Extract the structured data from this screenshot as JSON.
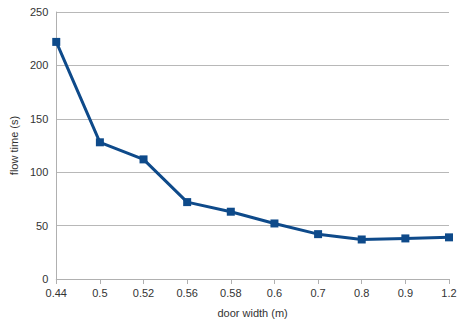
{
  "chart_data": {
    "type": "line",
    "x_label": "door width (m)",
    "y_label": "flow time (s)",
    "categories": [
      "0.44",
      "0.5",
      "0.52",
      "0.56",
      "0.58",
      "0.6",
      "0.7",
      "0.8",
      "0.9",
      "1.2"
    ],
    "values": [
      222,
      128,
      112,
      72,
      63,
      52,
      42,
      37,
      38,
      39
    ],
    "color": "#0e4a8a",
    "marker": "square",
    "ylim": [
      0,
      250
    ],
    "yticks": [
      0,
      50,
      100,
      150,
      200,
      250
    ],
    "grid": true
  }
}
